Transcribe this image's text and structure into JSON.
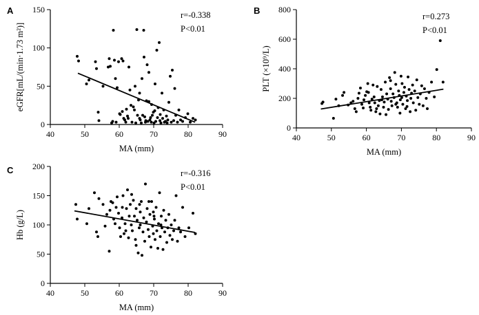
{
  "chart_data": [
    {
      "panel": "A",
      "type": "scatter",
      "xlabel": "MA (mm)",
      "ylabel": "eGFR[mL/(min·1.73 m²)]",
      "xlim": [
        40,
        90
      ],
      "ylim": [
        0,
        150
      ],
      "xticks": [
        40,
        50,
        60,
        70,
        80,
        90
      ],
      "yticks": [
        0,
        50,
        100,
        150
      ],
      "annotations": {
        "r": "r=-0.338",
        "p": "P<0.01"
      },
      "regression": {
        "x": [
          48,
          82
        ],
        "y": [
          67,
          3
        ]
      },
      "points": [
        [
          47.8,
          89
        ],
        [
          48.2,
          83
        ],
        [
          50.5,
          53
        ],
        [
          51.2,
          58
        ],
        [
          53.1,
          82
        ],
        [
          53.4,
          73
        ],
        [
          53.9,
          16
        ],
        [
          54.1,
          5
        ],
        [
          55.3,
          50
        ],
        [
          56.8,
          75
        ],
        [
          57.1,
          86
        ],
        [
          57.4,
          76
        ],
        [
          57.8,
          2
        ],
        [
          58.1,
          4
        ],
        [
          58.3,
          123
        ],
        [
          58.6,
          84
        ],
        [
          58.9,
          60
        ],
        [
          59.1,
          3
        ],
        [
          59.4,
          48
        ],
        [
          59.8,
          82
        ],
        [
          60.1,
          14
        ],
        [
          60.3,
          13
        ],
        [
          60.7,
          86
        ],
        [
          61.1,
          83
        ],
        [
          61.3,
          8
        ],
        [
          61.6,
          6
        ],
        [
          61.9,
          3
        ],
        [
          62.1,
          20
        ],
        [
          62.4,
          11
        ],
        [
          62.8,
          75
        ],
        [
          63.1,
          45
        ],
        [
          63.4,
          25
        ],
        [
          63.7,
          3
        ],
        [
          64.1,
          23
        ],
        [
          64.4,
          19
        ],
        [
          64.8,
          2
        ],
        [
          65.1,
          124
        ],
        [
          65.3,
          12
        ],
        [
          65.6,
          32
        ],
        [
          65.9,
          41
        ],
        [
          66.1,
          6
        ],
        [
          66.4,
          2
        ],
        [
          66.8,
          12
        ],
        [
          67.1,
          123
        ],
        [
          67.2,
          88
        ],
        [
          67.4,
          10
        ],
        [
          67.7,
          5
        ],
        [
          67.9,
          31
        ],
        [
          68.1,
          78
        ],
        [
          68.3,
          4
        ],
        [
          68.6,
          30
        ],
        [
          68.9,
          6
        ],
        [
          69.1,
          9
        ],
        [
          69.3,
          3
        ],
        [
          69.6,
          12
        ],
        [
          69.9,
          16
        ],
        [
          70.1,
          2
        ],
        [
          70.3,
          18
        ],
        [
          70.6,
          4
        ],
        [
          70.9,
          97
        ],
        [
          71.1,
          9
        ],
        [
          71.3,
          22
        ],
        [
          71.6,
          107
        ],
        [
          71.8,
          5
        ],
        [
          72.1,
          2
        ],
        [
          72.4,
          41
        ],
        [
          72.6,
          8
        ],
        [
          72.9,
          19
        ],
        [
          73.1,
          3
        ],
        [
          73.4,
          4
        ],
        [
          73.7,
          11
        ],
        [
          74.1,
          6
        ],
        [
          74.4,
          29
        ],
        [
          74.8,
          63
        ],
        [
          75.1,
          3
        ],
        [
          75.4,
          71
        ],
        [
          75.8,
          5
        ],
        [
          76.1,
          47
        ],
        [
          76.4,
          12
        ],
        [
          76.9,
          3
        ],
        [
          77.3,
          19
        ],
        [
          77.8,
          6
        ],
        [
          78.4,
          4
        ],
        [
          79.2,
          9
        ],
        [
          79.9,
          14
        ],
        [
          80.6,
          3
        ],
        [
          81.4,
          8
        ],
        [
          82.1,
          6
        ],
        [
          64.6,
          50
        ],
        [
          66.6,
          60
        ],
        [
          68.6,
          68
        ],
        [
          70.4,
          53
        ],
        [
          62.6,
          8
        ],
        [
          60.9,
          17
        ],
        [
          71.9,
          13
        ],
        [
          73.9,
          2
        ],
        [
          69.4,
          26
        ],
        [
          67.6,
          3
        ],
        [
          65.9,
          8
        ]
      ]
    },
    {
      "panel": "B",
      "type": "scatter",
      "xlabel": "MA (mm)",
      "ylabel": "PLT (×10⁹/L)",
      "xlim": [
        40,
        90
      ],
      "ylim": [
        0,
        800
      ],
      "xticks": [
        40,
        50,
        60,
        70,
        80,
        90
      ],
      "yticks": [
        0,
        200,
        400,
        600,
        800
      ],
      "annotations": {
        "r": "r=0.273",
        "p": "P<0.01"
      },
      "regression": {
        "x": [
          47,
          82
        ],
        "y": [
          128,
          262
        ]
      },
      "points": [
        [
          47.3,
          165
        ],
        [
          47.6,
          175
        ],
        [
          50.6,
          65
        ],
        [
          51.3,
          195
        ],
        [
          52.1,
          150
        ],
        [
          53.2,
          220
        ],
        [
          53.6,
          240
        ],
        [
          54.8,
          155
        ],
        [
          55.6,
          170
        ],
        [
          56.2,
          180
        ],
        [
          56.7,
          130
        ],
        [
          57.1,
          110
        ],
        [
          57.6,
          200
        ],
        [
          57.9,
          235
        ],
        [
          58.3,
          270
        ],
        [
          58.7,
          160
        ],
        [
          59.1,
          135
        ],
        [
          59.3,
          190
        ],
        [
          59.7,
          220
        ],
        [
          60.1,
          245
        ],
        [
          60.4,
          300
        ],
        [
          60.8,
          170
        ],
        [
          61.1,
          140
        ],
        [
          61.3,
          120
        ],
        [
          61.6,
          195
        ],
        [
          61.9,
          290
        ],
        [
          62.2,
          210
        ],
        [
          62.4,
          170
        ],
        [
          62.7,
          110
        ],
        [
          63.1,
          280
        ],
        [
          63.4,
          150
        ],
        [
          63.7,
          185
        ],
        [
          63.9,
          95
        ],
        [
          64.2,
          260
        ],
        [
          64.6,
          210
        ],
        [
          64.9,
          140
        ],
        [
          65.1,
          175
        ],
        [
          65.4,
          310
        ],
        [
          65.8,
          230
        ],
        [
          66.1,
          195
        ],
        [
          66.3,
          125
        ],
        [
          66.6,
          340
        ],
        [
          66.9,
          265
        ],
        [
          67.1,
          180
        ],
        [
          67.3,
          150
        ],
        [
          67.6,
          230
        ],
        [
          67.9,
          205
        ],
        [
          68.1,
          375
        ],
        [
          68.4,
          295
        ],
        [
          68.7,
          170
        ],
        [
          68.9,
          140
        ],
        [
          69.2,
          250
        ],
        [
          69.4,
          220
        ],
        [
          69.7,
          190
        ],
        [
          69.9,
          350
        ],
        [
          70.2,
          300
        ],
        [
          70.4,
          160
        ],
        [
          70.7,
          240
        ],
        [
          70.9,
          275
        ],
        [
          71.2,
          130
        ],
        [
          71.4,
          215
        ],
        [
          71.7,
          185
        ],
        [
          71.9,
          345
        ],
        [
          72.2,
          260
        ],
        [
          72.5,
          110
        ],
        [
          72.7,
          200
        ],
        [
          72.9,
          235
        ],
        [
          73.2,
          290
        ],
        [
          73.4,
          170
        ],
        [
          73.8,
          250
        ],
        [
          74.1,
          120
        ],
        [
          74.4,
          325
        ],
        [
          74.7,
          205
        ],
        [
          75.1,
          160
        ],
        [
          75.4,
          230
        ],
        [
          75.8,
          285
        ],
        [
          76.2,
          150
        ],
        [
          76.6,
          265
        ],
        [
          77.1,
          200
        ],
        [
          77.4,
          130
        ],
        [
          77.9,
          240
        ],
        [
          78.6,
          310
        ],
        [
          79.4,
          210
        ],
        [
          80.1,
          395
        ],
        [
          81.1,
          590
        ],
        [
          81.9,
          310
        ],
        [
          62.9,
          130
        ],
        [
          65.6,
          90
        ],
        [
          69.6,
          100
        ],
        [
          71.6,
          145
        ],
        [
          66.9,
          320
        ],
        [
          64.4,
          190
        ],
        [
          68.4,
          160
        ],
        [
          70.1,
          205
        ],
        [
          60.6,
          240
        ]
      ]
    },
    {
      "panel": "C",
      "type": "scatter",
      "xlabel": "MA (mm)",
      "ylabel": "Hb (g/L)",
      "xlim": [
        40,
        90
      ],
      "ylim": [
        0,
        200
      ],
      "xticks": [
        40,
        50,
        60,
        70,
        80,
        90
      ],
      "yticks": [
        0,
        50,
        100,
        150,
        200
      ],
      "annotations": {
        "r": "r=-0.316",
        "p": "P<0.01"
      },
      "regression": {
        "x": [
          47,
          82
        ],
        "y": [
          124,
          87
        ]
      },
      "points": [
        [
          47.4,
          135
        ],
        [
          47.8,
          110
        ],
        [
          50.6,
          102
        ],
        [
          51.2,
          128
        ],
        [
          52.8,
          155
        ],
        [
          53.4,
          88
        ],
        [
          53.8,
          80
        ],
        [
          54.1,
          145
        ],
        [
          55.3,
          135
        ],
        [
          55.9,
          98
        ],
        [
          56.4,
          118
        ],
        [
          57.1,
          55
        ],
        [
          57.3,
          125
        ],
        [
          57.6,
          140
        ],
        [
          58.1,
          138
        ],
        [
          58.4,
          110
        ],
        [
          58.8,
          102
        ],
        [
          59.1,
          130
        ],
        [
          59.4,
          148
        ],
        [
          59.8,
          120
        ],
        [
          60.1,
          95
        ],
        [
          60.4,
          80
        ],
        [
          60.8,
          112
        ],
        [
          61.1,
          150
        ],
        [
          61.4,
          85
        ],
        [
          61.7,
          102
        ],
        [
          62.1,
          128
        ],
        [
          62.4,
          160
        ],
        [
          62.7,
          78
        ],
        [
          62.9,
          115
        ],
        [
          63.2,
          135
        ],
        [
          63.5,
          100
        ],
        [
          63.8,
          90
        ],
        [
          64.1,
          142
        ],
        [
          64.4,
          115
        ],
        [
          64.7,
          75
        ],
        [
          64.9,
          128
        ],
        [
          65.2,
          108
        ],
        [
          65.5,
          52
        ],
        [
          65.8,
          95
        ],
        [
          66.1,
          122
        ],
        [
          66.4,
          140
        ],
        [
          66.6,
          48
        ],
        [
          66.9,
          88
        ],
        [
          67.1,
          112
        ],
        [
          67.4,
          72
        ],
        [
          67.6,
          170
        ],
        [
          67.9,
          105
        ],
        [
          68.1,
          128
        ],
        [
          68.4,
          92
        ],
        [
          68.7,
          80
        ],
        [
          68.9,
          118
        ],
        [
          69.2,
          62
        ],
        [
          69.4,
          140
        ],
        [
          69.7,
          98
        ],
        [
          69.9,
          85
        ],
        [
          70.2,
          110
        ],
        [
          70.4,
          75
        ],
        [
          70.7,
          130
        ],
        [
          70.9,
          90
        ],
        [
          71.2,
          60
        ],
        [
          71.4,
          102
        ],
        [
          71.7,
          155
        ],
        [
          71.9,
          80
        ],
        [
          72.2,
          115
        ],
        [
          72.4,
          95
        ],
        [
          72.7,
          58
        ],
        [
          72.9,
          125
        ],
        [
          73.2,
          88
        ],
        [
          73.5,
          108
        ],
        [
          73.8,
          70
        ],
        [
          74.1,
          95
        ],
        [
          74.4,
          118
        ],
        [
          74.7,
          82
        ],
        [
          75.1,
          100
        ],
        [
          75.4,
          75
        ],
        [
          75.8,
          90
        ],
        [
          76.1,
          108
        ],
        [
          76.5,
          150
        ],
        [
          76.9,
          72
        ],
        [
          77.3,
          95
        ],
        [
          77.8,
          88
        ],
        [
          78.4,
          130
        ],
        [
          79.1,
          80
        ],
        [
          80.2,
          95
        ],
        [
          81.4,
          120
        ],
        [
          82.1,
          85
        ],
        [
          63.6,
          152
        ],
        [
          65.9,
          135
        ],
        [
          68.6,
          140
        ],
        [
          70.1,
          115
        ],
        [
          66.1,
          100
        ],
        [
          64.9,
          65
        ],
        [
          69.9,
          122
        ],
        [
          61.9,
          90
        ],
        [
          72.1,
          100
        ],
        [
          60.9,
          130
        ]
      ]
    }
  ]
}
